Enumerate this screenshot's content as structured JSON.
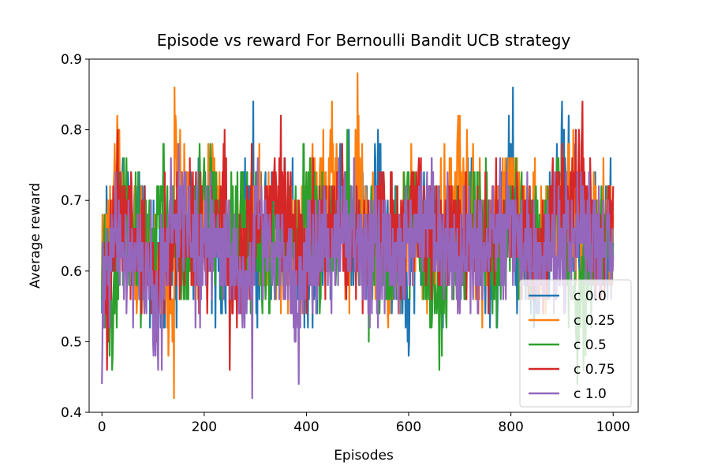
{
  "chart_data": {
    "type": "line",
    "title": "Episode vs reward For Bernoulli Bandit UCB strategy",
    "xlabel": "Episodes",
    "ylabel": "Average reward",
    "xlim": [
      -25,
      1049
    ],
    "ylim": [
      0.4,
      0.9
    ],
    "xticks": [
      0,
      200,
      400,
      600,
      800,
      1000
    ],
    "xtick_labels": [
      "0",
      "200",
      "400",
      "600",
      "800",
      "1000"
    ],
    "yticks": [
      0.4,
      0.5,
      0.6,
      0.7,
      0.8,
      0.9
    ],
    "ytick_labels": [
      "0.4",
      "0.5",
      "0.6",
      "0.7",
      "0.8",
      "0.9"
    ],
    "grid": false,
    "legend_position": "lower right",
    "episodes": 1000,
    "series": [
      {
        "name": "c 0.0",
        "color": "#1f77b4",
        "keypoints": [
          [
            0,
            0.54
          ],
          [
            15,
            0.64
          ],
          [
            40,
            0.74
          ],
          [
            78,
            0.66
          ],
          [
            120,
            0.56
          ],
          [
            160,
            0.64
          ],
          [
            205,
            0.7
          ],
          [
            240,
            0.58
          ],
          [
            296,
            0.84
          ],
          [
            300,
            0.6
          ],
          [
            350,
            0.72
          ],
          [
            400,
            0.56
          ],
          [
            440,
            0.66
          ],
          [
            470,
            0.76
          ],
          [
            520,
            0.62
          ],
          [
            540,
            0.8
          ],
          [
            570,
            0.6
          ],
          [
            600,
            0.48
          ],
          [
            630,
            0.74
          ],
          [
            670,
            0.6
          ],
          [
            720,
            0.7
          ],
          [
            760,
            0.58
          ],
          [
            804,
            0.86
          ],
          [
            810,
            0.62
          ],
          [
            850,
            0.54
          ],
          [
            900,
            0.84
          ],
          [
            940,
            0.62
          ],
          [
            980,
            0.7
          ],
          [
            1000,
            0.62
          ]
        ],
        "min": 0.48,
        "max": 0.86
      },
      {
        "name": "c 0.25",
        "color": "#ff7f0e",
        "keypoints": [
          [
            0,
            0.58
          ],
          [
            25,
            0.78
          ],
          [
            30,
            0.82
          ],
          [
            70,
            0.64
          ],
          [
            141,
            0.42
          ],
          [
            142,
            0.86
          ],
          [
            180,
            0.64
          ],
          [
            220,
            0.76
          ],
          [
            260,
            0.58
          ],
          [
            300,
            0.7
          ],
          [
            360,
            0.62
          ],
          [
            420,
            0.74
          ],
          [
            450,
            0.84
          ],
          [
            480,
            0.6
          ],
          [
            500,
            0.88
          ],
          [
            520,
            0.66
          ],
          [
            560,
            0.52
          ],
          [
            600,
            0.72
          ],
          [
            650,
            0.64
          ],
          [
            700,
            0.82
          ],
          [
            750,
            0.6
          ],
          [
            800,
            0.76
          ],
          [
            850,
            0.66
          ],
          [
            900,
            0.78
          ],
          [
            950,
            0.64
          ],
          [
            1000,
            0.68
          ]
        ],
        "min": 0.42,
        "max": 0.88
      },
      {
        "name": "c 0.5",
        "color": "#2ca02c",
        "keypoints": [
          [
            0,
            0.56
          ],
          [
            20,
            0.46
          ],
          [
            40,
            0.72
          ],
          [
            80,
            0.6
          ],
          [
            120,
            0.78
          ],
          [
            160,
            0.56
          ],
          [
            200,
            0.76
          ],
          [
            240,
            0.62
          ],
          [
            280,
            0.7
          ],
          [
            320,
            0.56
          ],
          [
            360,
            0.66
          ],
          [
            400,
            0.74
          ],
          [
            440,
            0.6
          ],
          [
            480,
            0.8
          ],
          [
            520,
            0.62
          ],
          [
            560,
            0.56
          ],
          [
            600,
            0.74
          ],
          [
            660,
            0.46
          ],
          [
            700,
            0.64
          ],
          [
            740,
            0.7
          ],
          [
            780,
            0.56
          ],
          [
            820,
            0.72
          ],
          [
            860,
            0.62
          ],
          [
            900,
            0.76
          ],
          [
            930,
            0.44
          ],
          [
            970,
            0.66
          ],
          [
            1000,
            0.64
          ]
        ],
        "min": 0.44,
        "max": 0.8
      },
      {
        "name": "c 0.75",
        "color": "#d62728",
        "keypoints": [
          [
            0,
            0.6
          ],
          [
            10,
            0.46
          ],
          [
            30,
            0.76
          ],
          [
            70,
            0.66
          ],
          [
            110,
            0.52
          ],
          [
            150,
            0.7
          ],
          [
            200,
            0.62
          ],
          [
            240,
            0.8
          ],
          [
            250,
            0.46
          ],
          [
            300,
            0.72
          ],
          [
            350,
            0.82
          ],
          [
            380,
            0.6
          ],
          [
            420,
            0.66
          ],
          [
            460,
            0.74
          ],
          [
            500,
            0.6
          ],
          [
            540,
            0.72
          ],
          [
            580,
            0.66
          ],
          [
            620,
            0.76
          ],
          [
            660,
            0.62
          ],
          [
            700,
            0.7
          ],
          [
            740,
            0.6
          ],
          [
            780,
            0.72
          ],
          [
            820,
            0.66
          ],
          [
            860,
            0.58
          ],
          [
            890,
            0.74
          ],
          [
            940,
            0.84
          ],
          [
            970,
            0.6
          ],
          [
            1000,
            0.72
          ]
        ],
        "min": 0.46,
        "max": 0.84
      },
      {
        "name": "c 1.0",
        "color": "#9467bd",
        "keypoints": [
          [
            0,
            0.44
          ],
          [
            20,
            0.66
          ],
          [
            60,
            0.62
          ],
          [
            110,
            0.46
          ],
          [
            150,
            0.78
          ],
          [
            190,
            0.62
          ],
          [
            240,
            0.66
          ],
          [
            294,
            0.42
          ],
          [
            300,
            0.7
          ],
          [
            340,
            0.62
          ],
          [
            385,
            0.44
          ],
          [
            400,
            0.66
          ],
          [
            440,
            0.6
          ],
          [
            480,
            0.68
          ],
          [
            520,
            0.64
          ],
          [
            560,
            0.6
          ],
          [
            600,
            0.66
          ],
          [
            640,
            0.72
          ],
          [
            680,
            0.58
          ],
          [
            720,
            0.66
          ],
          [
            760,
            0.62
          ],
          [
            800,
            0.68
          ],
          [
            840,
            0.6
          ],
          [
            880,
            0.66
          ],
          [
            920,
            0.64
          ],
          [
            960,
            0.68
          ],
          [
            1000,
            0.62
          ]
        ],
        "min": 0.42,
        "max": 0.78
      }
    ]
  }
}
